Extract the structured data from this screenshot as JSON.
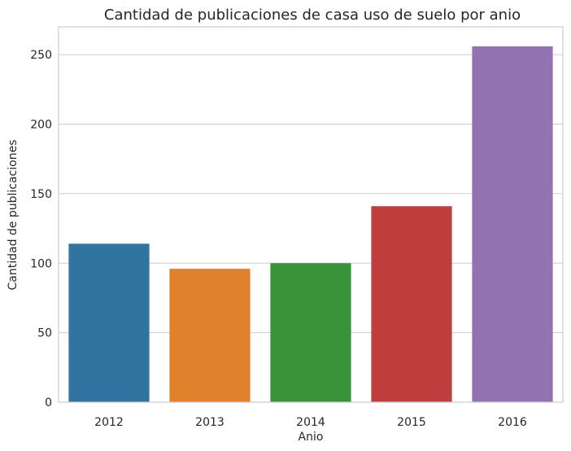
{
  "chart_data": {
    "type": "bar",
    "title": "Cantidad de publicaciones de casa uso de suelo por anio",
    "xlabel": "Anio",
    "ylabel": "Cantidad de publicaciones",
    "categories": [
      "2012",
      "2013",
      "2014",
      "2015",
      "2016"
    ],
    "values": [
      114,
      96,
      100,
      141,
      256
    ],
    "colors": [
      "#3274a1",
      "#e1812c",
      "#3a923a",
      "#c03d3e",
      "#9372b2"
    ],
    "ylim": [
      0,
      270
    ],
    "yticks": [
      0,
      50,
      100,
      150,
      200,
      250
    ],
    "grid": true,
    "legend": "none"
  }
}
